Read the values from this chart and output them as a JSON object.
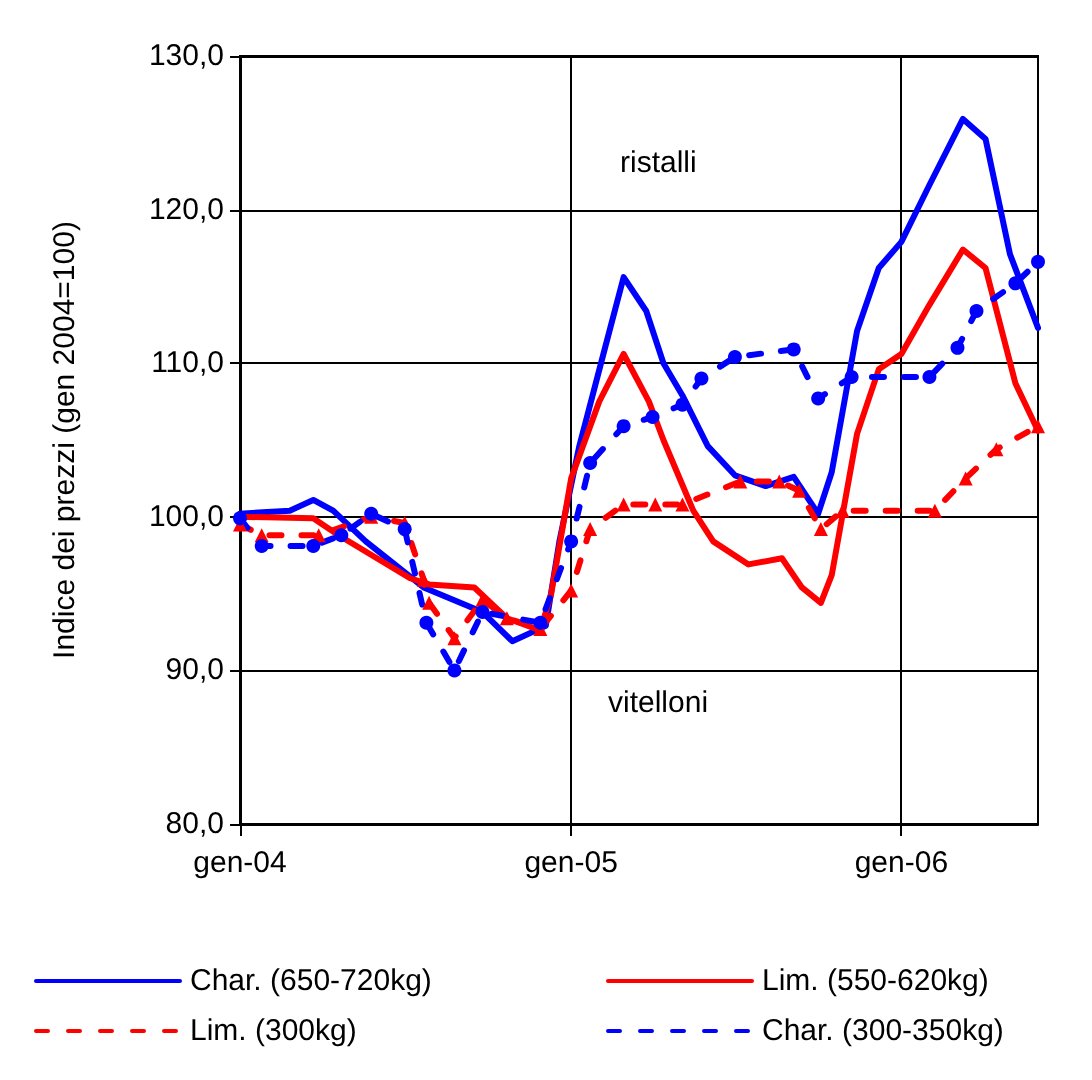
{
  "chart_data": {
    "type": "line",
    "ylabel": "Indice dei prezzi (gen 2004=100)",
    "xlim": [
      "2004-01-01",
      "2006-06-01"
    ],
    "xticks": [
      {
        "value": "2004-01-01",
        "label": "gen-04"
      },
      {
        "value": "2005-01-01",
        "label": "gen-05"
      },
      {
        "value": "2006-01-01",
        "label": "gen-06"
      }
    ],
    "ylim": [
      80,
      130
    ],
    "yticks": [
      {
        "value": 80,
        "label": "80,0"
      },
      {
        "value": 90,
        "label": "90,0"
      },
      {
        "value": 100,
        "label": "100,0"
      },
      {
        "value": 110,
        "label": "110,0"
      },
      {
        "value": 120,
        "label": "120,0"
      },
      {
        "value": 130,
        "label": "130,0"
      }
    ],
    "grid": true,
    "legend": "bottom",
    "annotations": [
      "ristalli",
      "vitelloni"
    ],
    "series": [
      {
        "name": "Char. (650-720kg)",
        "color": "#0000ff",
        "line_style": "solid",
        "marker": "none",
        "x": [
          "2004-01-01",
          "2004-02-25",
          "2004-03-22",
          "2004-04-13",
          "2004-05-19",
          "2004-07-22",
          "2004-09-25",
          "2004-10-28",
          "2004-12-04",
          "2004-12-19",
          "2005-01-10",
          "2005-02-07",
          "2005-02-28",
          "2005-03-25",
          "2005-04-13",
          "2005-05-04",
          "2005-06-01",
          "2005-07-01",
          "2005-08-04",
          "2005-09-04",
          "2005-10-01",
          "2005-10-16",
          "2005-11-13",
          "2005-12-07",
          "2006-01-01",
          "2006-02-01",
          "2006-03-10",
          "2006-04-04",
          "2006-05-01",
          "2006-06-01"
        ],
        "values": [
          100.2,
          100.4,
          101.1,
          100.4,
          98.4,
          95.4,
          93.8,
          91.9,
          92.9,
          98.4,
          104.6,
          110.9,
          115.6,
          113.4,
          110,
          107.9,
          104.6,
          102.7,
          102,
          102.6,
          100.2,
          102.9,
          112.1,
          116.2,
          117.9,
          121.6,
          125.9,
          124.6,
          117.1,
          112.3
        ]
      },
      {
        "name": "Lim. (550-620kg)",
        "color": "#ff0000",
        "line_style": "solid",
        "marker": "none",
        "x": [
          "2004-01-01",
          "2004-03-22",
          "2004-04-19",
          "2004-07-07",
          "2004-07-28",
          "2004-09-16",
          "2004-10-22",
          "2004-11-28",
          "2004-12-10",
          "2005-01-01",
          "2005-02-01",
          "2005-02-28",
          "2005-03-28",
          "2005-04-13",
          "2005-05-16",
          "2005-06-07",
          "2005-07-16",
          "2005-08-22",
          "2005-09-13",
          "2005-10-04",
          "2005-10-16",
          "2005-11-13",
          "2005-12-07",
          "2006-01-01",
          "2006-02-01",
          "2006-03-10",
          "2006-04-04",
          "2006-05-07",
          "2006-06-01"
        ],
        "values": [
          100,
          99.9,
          98.8,
          96,
          95.6,
          95.4,
          93.4,
          92.6,
          95,
          102.5,
          107.5,
          110.6,
          107.5,
          105,
          100.4,
          98.4,
          96.9,
          97.3,
          95.4,
          94.4,
          96.2,
          105.4,
          109.6,
          110.6,
          113.8,
          117.4,
          116.2,
          108.7,
          105.6
        ]
      },
      {
        "name": "Lim. (300kg)",
        "color": "#ff0000",
        "line_style": "dashed",
        "marker": "triangle",
        "x": [
          "2004-01-01",
          "2004-01-25",
          "2004-03-28",
          "2004-05-25",
          "2004-07-01",
          "2004-07-22",
          "2004-07-28",
          "2004-08-25",
          "2004-09-25",
          "2004-10-22",
          "2004-11-28",
          "2005-01-01",
          "2005-01-22",
          "2005-02-28",
          "2005-04-04",
          "2005-05-04",
          "2005-07-07",
          "2005-08-19",
          "2005-09-10",
          "2005-10-04",
          "2005-10-28",
          "2006-02-07",
          "2006-03-13",
          "2006-04-16",
          "2006-06-01"
        ],
        "values": [
          99.5,
          98.8,
          98.8,
          100,
          99.6,
          95.9,
          94.4,
          92.1,
          94.6,
          93.4,
          92.7,
          95.2,
          99.2,
          100.8,
          100.8,
          100.8,
          102.3,
          102.3,
          101.7,
          99.2,
          100.4,
          100.4,
          102.5,
          104.4,
          105.9
        ]
      },
      {
        "name": "Char. (300-350kg)",
        "color": "#0000ff",
        "line_style": "dashed",
        "marker": "circle",
        "x": [
          "2004-01-01",
          "2004-01-25",
          "2004-03-22",
          "2004-04-22",
          "2004-05-25",
          "2004-07-01",
          "2004-07-25",
          "2004-08-25",
          "2004-09-25",
          "2004-11-28",
          "2005-01-01",
          "2005-01-22",
          "2005-02-28",
          "2005-04-01",
          "2005-05-04",
          "2005-05-25",
          "2005-07-01",
          "2005-09-04",
          "2005-10-01",
          "2005-11-07",
          "2006-02-01",
          "2006-03-04",
          "2006-03-25",
          "2006-05-07",
          "2006-06-01"
        ],
        "values": [
          99.9,
          98.1,
          98.1,
          98.8,
          100.2,
          99.2,
          93.1,
          90,
          93.8,
          93.1,
          98.4,
          103.5,
          105.9,
          106.5,
          107.3,
          109,
          110.4,
          110.9,
          107.7,
          109.1,
          109.1,
          111,
          113.4,
          115.2,
          116.6
        ]
      }
    ]
  }
}
